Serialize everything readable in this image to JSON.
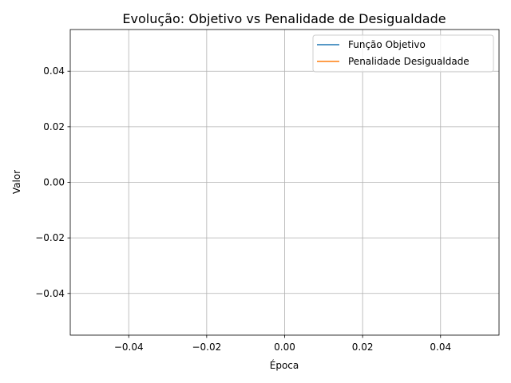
{
  "chart_data": {
    "type": "line",
    "title": "Evolução: Objetivo vs Penalidade de Desigualdade",
    "xlabel": "Época",
    "ylabel": "Valor",
    "xlim": [
      -0.055,
      0.055
    ],
    "ylim": [
      -0.055,
      0.055
    ],
    "xticks": [
      -0.04,
      -0.02,
      0.0,
      0.02,
      0.04
    ],
    "xtick_labels": [
      "−0.04",
      "−0.02",
      "0.00",
      "0.02",
      "0.04"
    ],
    "yticks": [
      -0.04,
      -0.02,
      0.0,
      0.02,
      0.04
    ],
    "ytick_labels": [
      "−0.04",
      "−0.02",
      "0.00",
      "0.02",
      "0.04"
    ],
    "grid": true,
    "legend_position": "upper right",
    "series": [
      {
        "name": "Função Objetivo",
        "color": "#1f77b4",
        "x": [],
        "y": []
      },
      {
        "name": "Penalidade Desigualdade",
        "color": "#ff7f0e",
        "x": [],
        "y": []
      }
    ]
  }
}
